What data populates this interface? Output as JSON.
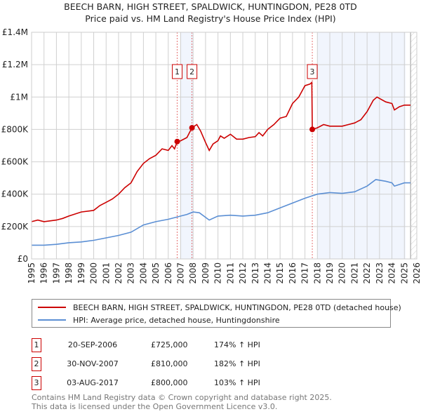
{
  "chart_data": {
    "type": "line",
    "title": "BEECH BARN, HIGH STREET, SPALDWICK, HUNTINGDON, PE28 0TD",
    "subtitle": "Price paid vs. HM Land Registry's House Price Index (HPI)",
    "xlim": [
      1995,
      2026
    ],
    "ylim": [
      0,
      1400000
    ],
    "x_ticks": [
      "1995",
      "1996",
      "1997",
      "1998",
      "1999",
      "2000",
      "2001",
      "2002",
      "2003",
      "2004",
      "2005",
      "2006",
      "2007",
      "2008",
      "2009",
      "2010",
      "2011",
      "2012",
      "2013",
      "2014",
      "2015",
      "2016",
      "2017",
      "2018",
      "2019",
      "2020",
      "2021",
      "2022",
      "2023",
      "2024",
      "2025",
      "2026"
    ],
    "y_ticks": [
      {
        "v": 0,
        "label": "£0"
      },
      {
        "v": 200000,
        "label": "£200K"
      },
      {
        "v": 400000,
        "label": "£400K"
      },
      {
        "v": 600000,
        "label": "£600K"
      },
      {
        "v": 800000,
        "label": "£800K"
      },
      {
        "v": 1000000,
        "label": "£1M"
      },
      {
        "v": 1200000,
        "label": "£1.2M"
      },
      {
        "v": 1400000,
        "label": "£1.4M"
      }
    ],
    "grid": true,
    "shaded_ranges": [
      [
        2007.0,
        2008.0
      ],
      [
        2018.0,
        2025.1
      ]
    ],
    "hatched_from": 2025.5,
    "series": [
      {
        "name": "BEECH BARN, HIGH STREET, SPALDWICK, HUNTINGDON, PE28 0TD (detached house)",
        "color": "#cc0000",
        "x": [
          1995,
          1995.5,
          1996,
          1997,
          1997.5,
          1998,
          1999,
          2000,
          2000.5,
          2001,
          2001.5,
          2002,
          2002.5,
          2003,
          2003.5,
          2004,
          2004.5,
          2005,
          2005.5,
          2006,
          2006.3,
          2006.5,
          2006.72,
          2007,
          2007.5,
          2007.91,
          2008.3,
          2008.6,
          2009,
          2009.3,
          2009.6,
          2010,
          2010.2,
          2010.5,
          2011,
          2011.5,
          2012,
          2012.5,
          2013,
          2013.3,
          2013.6,
          2014,
          2014.5,
          2015,
          2015.5,
          2016,
          2016.5,
          2017,
          2017.4,
          2017.55,
          2017.59,
          2018,
          2018.5,
          2019,
          2020,
          2020.5,
          2021,
          2021.5,
          2022,
          2022.5,
          2022.8,
          2023.5,
          2024,
          2024.2,
          2024.6,
          2025,
          2025.5
        ],
        "y": [
          230000,
          240000,
          230000,
          240000,
          250000,
          265000,
          290000,
          300000,
          330000,
          350000,
          370000,
          400000,
          440000,
          470000,
          540000,
          590000,
          620000,
          640000,
          680000,
          670000,
          700000,
          680000,
          725000,
          730000,
          750000,
          810000,
          830000,
          790000,
          720000,
          670000,
          710000,
          730000,
          760000,
          745000,
          770000,
          740000,
          740000,
          750000,
          755000,
          780000,
          760000,
          800000,
          830000,
          870000,
          880000,
          960000,
          1000000,
          1070000,
          1080000,
          1090000,
          800000,
          810000,
          830000,
          820000,
          820000,
          830000,
          840000,
          860000,
          910000,
          980000,
          1000000,
          970000,
          960000,
          920000,
          940000,
          950000,
          950000
        ]
      },
      {
        "name": "HPI: Average price, detached house, Huntingdonshire",
        "color": "#5b8fd4",
        "x": [
          1995,
          1996,
          1997,
          1998,
          1999,
          2000,
          2001,
          2002,
          2003,
          2004,
          2005,
          2006,
          2007,
          2007.5,
          2008,
          2008.5,
          2009.3,
          2010,
          2011,
          2012,
          2013,
          2014,
          2015,
          2016,
          2017,
          2017.6,
          2018,
          2019,
          2020,
          2021,
          2022,
          2022.7,
          2023.5,
          2024,
          2024.2,
          2025,
          2025.5
        ],
        "y": [
          85000,
          85000,
          90000,
          100000,
          105000,
          115000,
          130000,
          145000,
          165000,
          210000,
          230000,
          245000,
          265000,
          275000,
          290000,
          285000,
          240000,
          265000,
          270000,
          265000,
          270000,
          285000,
          315000,
          345000,
          375000,
          390000,
          400000,
          410000,
          405000,
          415000,
          450000,
          490000,
          480000,
          470000,
          450000,
          470000,
          470000
        ]
      }
    ],
    "sales": [
      {
        "id": "1",
        "x": 2006.72,
        "price": 725000,
        "date": "20-SEP-2006",
        "price_label": "£725,000",
        "hpi": "174% ↑ HPI"
      },
      {
        "id": "2",
        "x": 2007.91,
        "price": 810000,
        "date": "30-NOV-2007",
        "price_label": "£810,000",
        "hpi": "182% ↑ HPI"
      },
      {
        "id": "3",
        "x": 2017.59,
        "price": 800000,
        "date": "03-AUG-2017",
        "price_label": "£800,000",
        "hpi": "103% ↑ HPI"
      }
    ]
  },
  "legend": {
    "property": "BEECH BARN, HIGH STREET, SPALDWICK, HUNTINGDON, PE28 0TD (detached house)",
    "hpi": "HPI: Average price, detached house, Huntingdonshire"
  },
  "footer": {
    "line1": "Contains HM Land Registry data © Crown copyright and database right 2025.",
    "line2": "This data is licensed under the Open Government Licence v3.0."
  }
}
